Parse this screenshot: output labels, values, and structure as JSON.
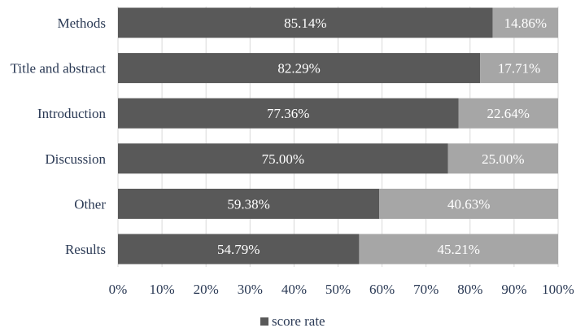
{
  "chart_data": {
    "type": "bar",
    "orientation": "horizontal",
    "stacked": true,
    "categories": [
      "Methods",
      "Title and abstract",
      "Introduction",
      "Discussion",
      "Other",
      "Results"
    ],
    "series": [
      {
        "name": "score rate",
        "color": "#595959",
        "values": [
          85.14,
          82.29,
          77.36,
          75.0,
          59.38,
          54.79
        ],
        "labels": [
          "85.14%",
          "82.29%",
          "77.36%",
          "75.00%",
          "59.38%",
          "54.79%"
        ]
      },
      {
        "color": "#a6a6a6",
        "values": [
          14.86,
          17.71,
          22.64,
          25.0,
          40.63,
          45.21
        ],
        "labels": [
          "14.86%",
          "17.71%",
          "22.64%",
          "25.00%",
          "40.63%",
          "45.21%"
        ]
      }
    ],
    "xlim": [
      0,
      100
    ],
    "xticks": [
      "0%",
      "10%",
      "20%",
      "30%",
      "40%",
      "50%",
      "60%",
      "70%",
      "80%",
      "90%",
      "100%"
    ],
    "grid": true,
    "legend_position": "bottom",
    "title": "",
    "xlabel": "",
    "ylabel": ""
  }
}
